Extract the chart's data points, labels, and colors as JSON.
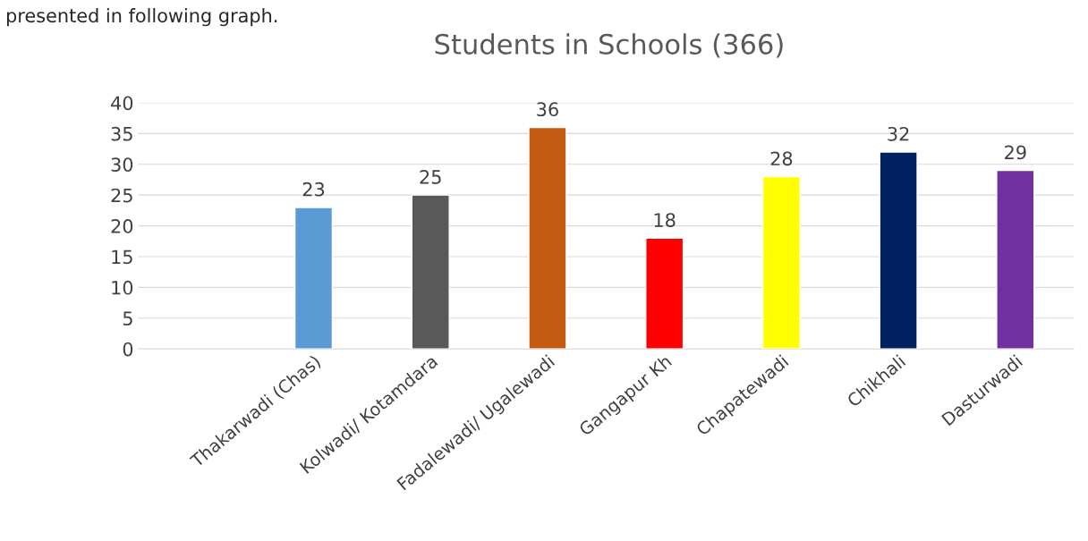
{
  "chart_data": {
    "type": "bar",
    "title": "Students in Schools (366)",
    "categories": [
      null,
      "Thakarwadi (Chas)",
      "Kolwadi/ Kotamdara",
      "Fadalewadi/ Ugalewadi",
      "Gangapur Kh",
      "Chapatewadi",
      "Chikhali",
      "Dasturwadi"
    ],
    "values": [
      null,
      23,
      25,
      36,
      18,
      28,
      32,
      29
    ],
    "colors": [
      "#5b9bd5",
      "#5b9bd5",
      "#595959",
      "#c55a11",
      "#ff0000",
      "#ffff00",
      "#002060",
      "#7030a0"
    ],
    "ylim": [
      0,
      40
    ],
    "yticks": [
      0,
      5,
      10,
      15,
      20,
      25,
      30,
      35,
      40
    ],
    "grid": "y",
    "data_labels": true,
    "legend": false,
    "annotations": [
      "presented in following graph."
    ]
  }
}
